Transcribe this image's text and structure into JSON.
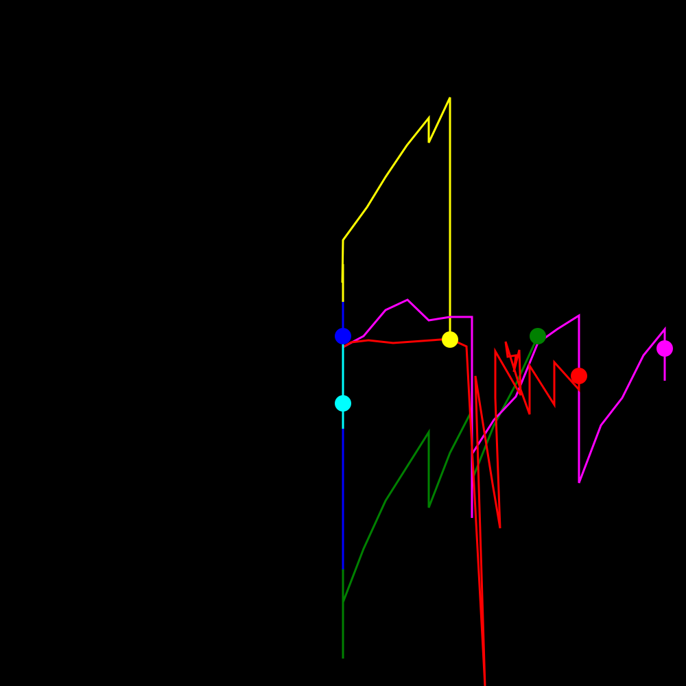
{
  "scene": {
    "background": "#000000",
    "trails": [
      {
        "name": "yellow-trail",
        "color": "#FFFF00"
      },
      {
        "name": "magenta-trail",
        "color": "#FF00FF"
      },
      {
        "name": "red-trail",
        "color": "#FF0000"
      },
      {
        "name": "green-trail",
        "color": "#008000"
      },
      {
        "name": "blue-trail",
        "color": "#0000FF"
      },
      {
        "name": "cyan-trail",
        "color": "#00FFFF"
      }
    ],
    "markers": [
      {
        "name": "blue-dot",
        "color": "#0000FF"
      },
      {
        "name": "cyan-dot",
        "color": "#00FFFF"
      },
      {
        "name": "yellow-dot",
        "color": "#FFFF00"
      },
      {
        "name": "green-dot",
        "color": "#008000"
      },
      {
        "name": "red-dot",
        "color": "#FF0000"
      },
      {
        "name": "magenta-dot",
        "color": "#FF00FF"
      }
    ]
  }
}
